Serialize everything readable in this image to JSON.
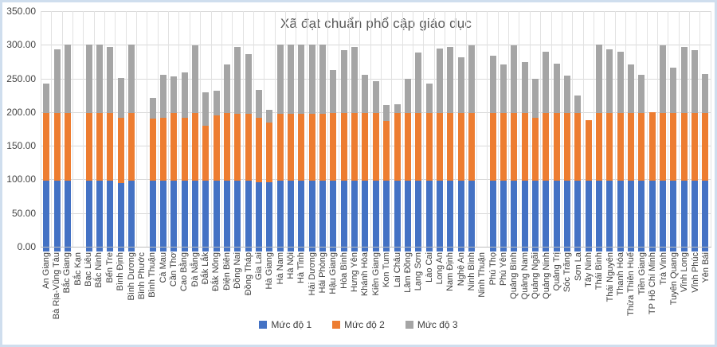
{
  "title": "Xã đạt chuẩn phổ cập giáo dục",
  "y_axis": {
    "max": 350,
    "min": 0,
    "step": 50,
    "tick_labels": [
      "350.00",
      "300.00",
      "250.00",
      "200.00",
      "150.00",
      "100.00",
      "50.00",
      "0.00"
    ]
  },
  "legend": {
    "items": [
      {
        "label": "Mức độ 1",
        "color": "#4472C4"
      },
      {
        "label": "Mức độ 2",
        "color": "#ED7D31"
      },
      {
        "label": "Mức độ 3",
        "color": "#A5A5A5"
      }
    ]
  },
  "colors": {
    "series_1": "#4472C4",
    "series_2": "#ED7D31",
    "series_3": "#A5A5A5",
    "gridline": "#d9d9d9",
    "title_text": "#595959",
    "axis_text": "#404040",
    "frame_border": "#cfdeee"
  },
  "chart_data": {
    "type": "bar",
    "stacked": true,
    "title": "Xã đạt chuẩn phổ cập giáo dục",
    "xlabel": "",
    "ylabel": "",
    "ylim": [
      0,
      350
    ],
    "grid": true,
    "legend_position": "bottom",
    "categories": [
      "An Giang",
      "Bà Rịa-Vũng Tàu",
      "Bắc Giang",
      "Bắc Kạn",
      "Bạc Liêu",
      "Bắc Ninh",
      "Bến Tre",
      "Bình Định",
      "Bình Dương",
      "Bình Phước",
      "Bình Thuận",
      "Cà Mau",
      "Cần Thơ",
      "Cao Bằng",
      "Đà Nẵng",
      "Đắk Lắk",
      "Đắk Nông",
      "Điện Biên",
      "Đồng Nai",
      "Đồng Tháp",
      "Gia Lai",
      "Hà Giang",
      "Hà Nam",
      "Hà Nội",
      "Hà Tĩnh",
      "Hải Dương",
      "Hải Phòng",
      "Hậu Giang",
      "Hòa Bình",
      "Hưng Yên",
      "Khánh Hòa",
      "Kiên Giang",
      "Kon Tum",
      "Lai Châu",
      "Lâm Đồng",
      "Lạng Sơn",
      "Lào Cai",
      "Long An",
      "Nam Định",
      "Nghệ An",
      "Ninh Bình",
      "Ninh Thuận",
      "Phú Thọ",
      "Phú Yên",
      "Quảng Bình",
      "Quảng Nam",
      "Quảng Ngãi",
      "Quảng Ninh",
      "Quảng Trị",
      "Sóc Trăng",
      "Sơn La",
      "Tây Ninh",
      "Thái Bình",
      "Thái Nguyên",
      "Thanh Hóa",
      "Thừa Thiên Huế",
      "Tiền Giang",
      "TP Hồ Chí Minh",
      "Trà Vinh",
      "Tuyên Quang",
      "Vĩnh Long",
      "Vĩnh Phúc",
      "Yên Bái"
    ],
    "series": [
      {
        "name": "Mức độ 1",
        "color": "#4472C4",
        "values": [
          98,
          98,
          98,
          0,
          98,
          98,
          98,
          95,
          98,
          0,
          98,
          98,
          98,
          98,
          98,
          98,
          98,
          98,
          98,
          98,
          96,
          96,
          98,
          98,
          98,
          98,
          98,
          98,
          98,
          98,
          98,
          98,
          98,
          98,
          98,
          98,
          98,
          98,
          98,
          98,
          98,
          0,
          98,
          98,
          98,
          98,
          98,
          98,
          98,
          98,
          98,
          98,
          98,
          98,
          98,
          98,
          98,
          98,
          98,
          98,
          98,
          98,
          98
        ]
      },
      {
        "name": "Mức độ 2",
        "color": "#ED7D31",
        "values": [
          101,
          101,
          101,
          0,
          101,
          101,
          101,
          96,
          101,
          0,
          92,
          94,
          101,
          93,
          101,
          82,
          97,
          101,
          100,
          100,
          96,
          89,
          100,
          100,
          100,
          100,
          100,
          101,
          101,
          101,
          101,
          101,
          89,
          101,
          101,
          101,
          101,
          101,
          101,
          101,
          101,
          0,
          101,
          101,
          101,
          101,
          94,
          101,
          101,
          101,
          101,
          90,
          101,
          101,
          101,
          101,
          101,
          102,
          101,
          101,
          101,
          101,
          101
        ]
      },
      {
        "name": "Mức độ 3",
        "color": "#A5A5A5",
        "values": [
          43,
          94,
          101,
          0,
          101,
          101,
          98,
          60,
          101,
          0,
          31,
          64,
          54,
          68,
          100,
          50,
          37,
          72,
          99,
          88,
          41,
          18,
          102,
          102,
          102,
          102,
          102,
          64,
          93,
          98,
          57,
          47,
          24,
          13,
          51,
          89,
          43,
          96,
          98,
          83,
          100,
          0,
          85,
          72,
          100,
          75,
          57,
          91,
          73,
          55,
          26,
          0,
          101,
          94,
          91,
          72,
          57,
          0,
          100,
          67,
          98,
          93,
          58
        ]
      }
    ]
  }
}
